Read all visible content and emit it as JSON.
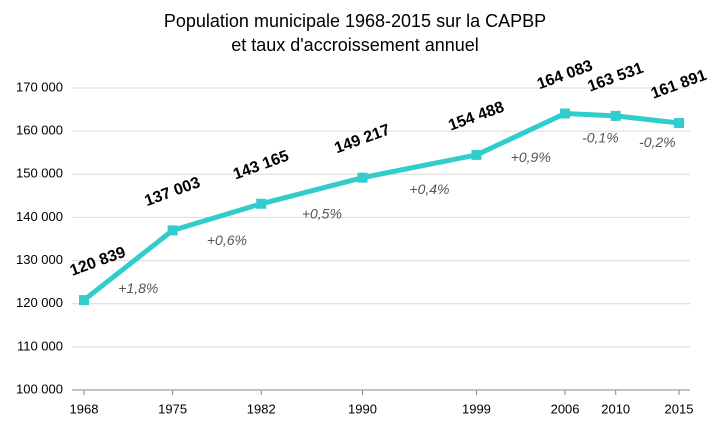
{
  "chart_data": {
    "type": "line",
    "title": [
      "Population municipale 1968-2015 sur la CAPBP",
      "et taux d'accroissement annuel"
    ],
    "x": [
      1968,
      1975,
      1982,
      1990,
      1999,
      2006,
      2010,
      2015
    ],
    "series": [
      {
        "color": "#33cccc",
        "values": [
          120839,
          137003,
          143165,
          149217,
          154488,
          164083,
          163531,
          161891
        ],
        "value_labels": [
          "120 839",
          "137 003",
          "143 165",
          "149 217",
          "154 488",
          "164 083",
          "163 531",
          "161 891"
        ]
      }
    ],
    "annotations": [
      "+1,8%",
      "+0,6%",
      "+0,5%",
      "+0,4%",
      "+0,9%",
      "-0,1%",
      "-0,2%"
    ],
    "xlim": [
      1968,
      2015
    ],
    "xticks": [
      1968,
      1975,
      1982,
      1990,
      1999,
      2006,
      2010,
      2015
    ],
    "ylim": [
      100000,
      170000
    ],
    "yticks": [
      {
        "value": 100000,
        "label": "100 000"
      },
      {
        "value": 110000,
        "label": "110 000"
      },
      {
        "value": 120000,
        "label": "120 000"
      },
      {
        "value": 130000,
        "label": "130 000"
      },
      {
        "value": 140000,
        "label": "140 000"
      },
      {
        "value": 150000,
        "label": "150 000"
      },
      {
        "value": 160000,
        "label": "160 000"
      },
      {
        "value": 170000,
        "label": "170 000"
      }
    ],
    "grid": true
  }
}
